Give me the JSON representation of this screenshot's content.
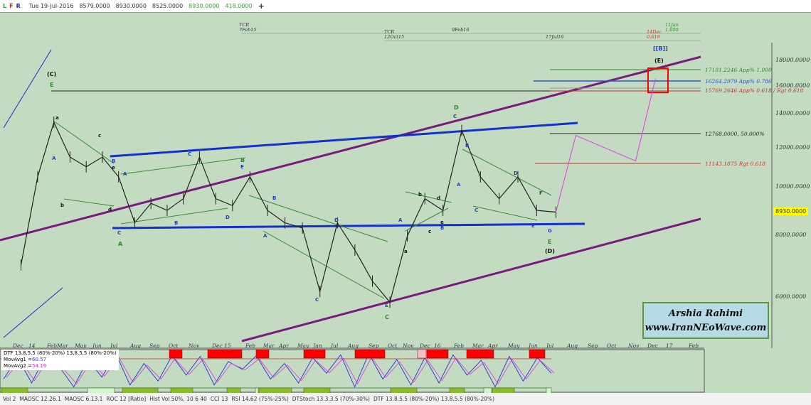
{
  "topbar": {
    "flags": [
      "L",
      "F",
      "R"
    ],
    "date": "Tue 19-Jul-2016",
    "open": "8579.0000",
    "high": "8930.0000",
    "low": "8525.0000",
    "close": "8930.0000",
    "change": "418.0000",
    "add": "+"
  },
  "price_axis": {
    "ticks": [
      "18000.0000",
      "16000.0000",
      "14000.0000",
      "12000.0000",
      "10000.0000",
      "8000.0000",
      "6000.0000"
    ],
    "last": "8930.0000"
  },
  "time_axis": {
    "ticks": [
      "Dec",
      "14",
      "Feb",
      "Mar",
      "May",
      "Jun",
      "Jul",
      "Aug",
      "Sep",
      "Oct",
      "Nov",
      "Dec",
      "15",
      "Feb",
      "Mar",
      "Apr",
      "May",
      "Jun",
      "Jul",
      "Aug",
      "Sep",
      "Oct",
      "Nov",
      "Dec",
      "16",
      "Feb",
      "Mar",
      "Apr",
      "May",
      "Jun",
      "Jul",
      "Aug",
      "Sep",
      "Oct",
      "Nov",
      "Dec",
      "17",
      "Feb"
    ]
  },
  "time_markers": [
    {
      "l1": "TCR",
      "l2": "7Feb15"
    },
    {
      "l1": "TCR",
      "l2": "12Oct15"
    },
    {
      "l1": "9Feb16",
      "l2": ""
    },
    {
      "l1": "17Jul16",
      "l2": ""
    },
    {
      "l1": "14Dec",
      "l2": "0.618"
    },
    {
      "l1": "11Jan",
      "l2": "1.000"
    }
  ],
  "fib_levels": [
    {
      "text": "17181.2246 App% 1.000",
      "color": "#2e8b2e"
    },
    {
      "text": "16264.2979 App% 0.786",
      "color": "#3050d0"
    },
    {
      "text": "15769.2646 App% 0.618 / Rgt 0.618",
      "color": "#c03030"
    },
    {
      "text": "12768.0000, 50.000%",
      "color": "#222222"
    },
    {
      "text": "11143.1875 Rgt 0.618",
      "color": "#d03030"
    }
  ],
  "wave_labels": {
    "C_big": "(C)",
    "D_big": "(D)",
    "E_big": "(E)",
    "B_dbl": "[[B]]",
    "A": "A",
    "B": "B",
    "C": "C",
    "D": "D",
    "E": "E",
    "F": "F",
    "G": "G",
    "a": "a",
    "b": "b",
    "c": "c",
    "d": "d",
    "e": "e"
  },
  "watermark": {
    "name": "Arshia Rahimi",
    "url": "www.IranNEoWave.com"
  },
  "indicator": {
    "name": "DTF 13,8,5,5 (80%-20%) 13,8,5,5 (80%-20%)",
    "ma1_label": "MovAvg1 =",
    "ma1": "60.57",
    "ma2_label": "MovAvg2 =",
    "ma2": "54.19"
  },
  "tabs": [
    "Vol 2",
    "MAOSC 12.26.1",
    "MAOSC 6.13.1",
    "ROC 12 [Ratio]",
    "Hist Vol 50%, 10 6 40",
    "CCI 13",
    "RSI 14.62 (75%-25%)",
    "DTStoch 13.3.3.5 (70%-30%)",
    "DTF 13.8.5.5 (80%-20%) 13.8.5.5 (80%-20%)"
  ],
  "colors": {
    "background": "#c3dcc1",
    "channel": "#7a1a7a",
    "trend_blue": "#1030d0",
    "projection": "#e040e0",
    "target_box": "#ff0000"
  },
  "chart_data": {
    "type": "line",
    "yscale": "log",
    "ylim": [
      5000,
      19000
    ],
    "grid": false,
    "x": [
      "2013-12",
      "2014-01",
      "2014-02",
      "2014-03",
      "2014-04",
      "2014-05",
      "2014-06",
      "2014-07",
      "2014-08",
      "2014-09",
      "2014-10",
      "2014-11",
      "2014-12",
      "2015-01",
      "2015-02",
      "2015-03",
      "2015-04",
      "2015-05",
      "2015-06",
      "2015-07",
      "2015-08",
      "2015-09",
      "2015-10",
      "2015-11",
      "2015-12",
      "2016-01",
      "2016-02",
      "2016-03",
      "2016-04",
      "2016-05",
      "2016-06",
      "2016-07"
    ],
    "close": [
      7000,
      10500,
      13500,
      11500,
      11000,
      11500,
      10500,
      8500,
      9300,
      9000,
      9500,
      11500,
      9500,
      9200,
      10500,
      9000,
      8500,
      8300,
      6200,
      8500,
      7500,
      6500,
      5900,
      8000,
      9500,
      9000,
      13000,
      10500,
      9500,
      10500,
      9000,
      8930
    ],
    "projection": {
      "x": [
        "2016-07",
        "2016-08",
        "2016-11",
        "2016-12"
      ],
      "y": [
        8930,
        12700,
        11300,
        16500
      ]
    },
    "oscillator": {
      "name": "DTF",
      "values": [
        30,
        85,
        20,
        90,
        60,
        10,
        80,
        35,
        95,
        15,
        70,
        25,
        90,
        40,
        88,
        15,
        75,
        55,
        90,
        30,
        70,
        20,
        85,
        45,
        92,
        10,
        95,
        30,
        80,
        15,
        85,
        20,
        92,
        40,
        78,
        10,
        88,
        25,
        85,
        45
      ]
    }
  }
}
